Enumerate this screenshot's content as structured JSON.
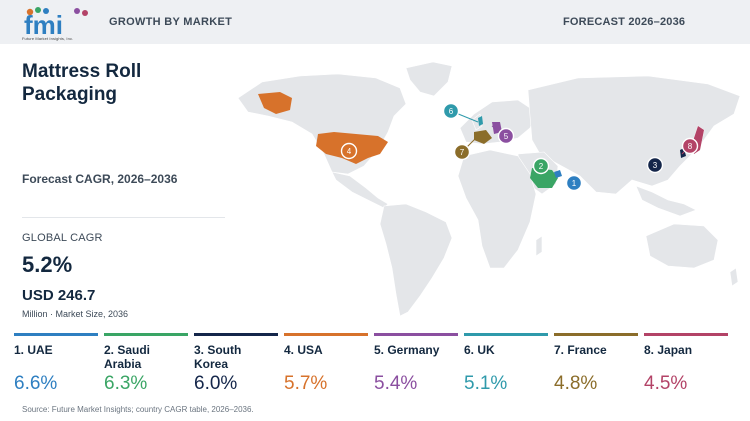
{
  "header": {
    "logo_name": "fmi",
    "logo_tagline": "Future Market Insights, Inc.",
    "section": "GROWTH BY MARKET",
    "forecast": "FORECAST 2026–2036"
  },
  "title": "Mattress Roll Packaging",
  "cagr_label": "Forecast CAGR, 2026–2036",
  "global": {
    "label": "GLOBAL CAGR",
    "value": "5.2%",
    "market_size": "USD 246.7",
    "market_note": "Million · Market Size, 2036"
  },
  "colors": {
    "UAE": "#2e7fc1",
    "Saudi Arabia": "#3aa565",
    "South Korea": "#14264a",
    "USA": "#d7722b",
    "Germany": "#8b4fa0",
    "UK": "#2f9aab",
    "France": "#8b6d2a",
    "Japan": "#b34367"
  },
  "chart_data": {
    "type": "table",
    "categories": [
      "1. UAE",
      "2. Saudi Arabia",
      "3. South Korea",
      "4. USA",
      "5. Germany",
      "6. UK",
      "7. France",
      "8. Japan"
    ],
    "countries": [
      "UAE",
      "Saudi Arabia",
      "South Korea",
      "USA",
      "Germany",
      "UK",
      "France",
      "Japan"
    ],
    "values": [
      6.6,
      6.3,
      6.0,
      5.7,
      5.4,
      5.1,
      4.8,
      4.5
    ],
    "value_labels": [
      "6.6%",
      "6.3%",
      "6.0%",
      "5.7%",
      "5.4%",
      "5.1%",
      "4.8%",
      "4.5%"
    ],
    "map_markers": [
      "1",
      "2",
      "3",
      "4",
      "5",
      "6",
      "7",
      "8"
    ]
  },
  "source": "Source: Future Market Insights; country CAGR table, 2026–2036."
}
